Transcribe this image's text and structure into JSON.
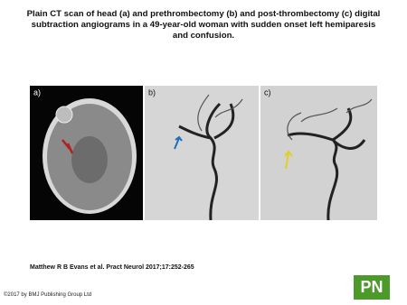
{
  "header": {
    "title": "Plain CT scan of head (a) and prethrombectomy (b) and post-thrombectomy (c) digital subtraction angiograms in a 49-year-old woman with sudden onset left hemiparesis and confusion."
  },
  "figure": {
    "panels": [
      {
        "label": "a)"
      },
      {
        "label": "b)"
      },
      {
        "label": "c)"
      }
    ]
  },
  "footer": {
    "citation": "Matthew R B Evans et al. Pract Neurol 2017;17:252-265",
    "copyright": "©2017 by BMJ Publishing Group Ltd",
    "logo": "PN"
  }
}
